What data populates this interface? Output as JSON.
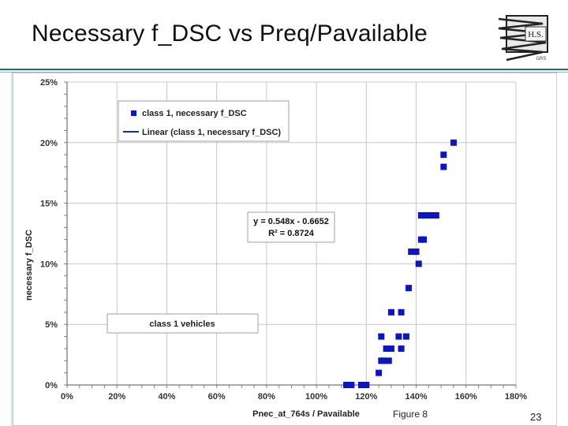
{
  "slide": {
    "title": "Necessary f_DSC vs Preq/Pavailable",
    "figure_caption": "Figure 8",
    "page_number": "23",
    "logo_text": "H.S.",
    "logo_small_text": "GRS"
  },
  "colors": {
    "accent_rule": "#0a7a68",
    "content_background": "#c6ede9",
    "marker": "#0a14c8",
    "trendline": "#1a2aa8"
  },
  "chart_data": {
    "type": "scatter",
    "xlabel": "Pnec_at_764s / Pavailable",
    "ylabel": "necessary f_DSC",
    "xlim": [
      0,
      180
    ],
    "ylim": [
      0,
      25
    ],
    "x_ticks": [
      "0%",
      "20%",
      "40%",
      "60%",
      "80%",
      "100%",
      "120%",
      "140%",
      "160%",
      "180%"
    ],
    "y_ticks": [
      "0%",
      "5%",
      "10%",
      "15%",
      "20%",
      "25%"
    ],
    "grid": true,
    "legend_position": "top-left",
    "legend": [
      "class 1, necessary f_DSC",
      "Linear (class 1, necessary f_DSC)"
    ],
    "series": [
      {
        "name": "class 1, necessary f_DSC",
        "points": [
          [
            112,
            0
          ],
          [
            114,
            0
          ],
          [
            118,
            0
          ],
          [
            120,
            0
          ],
          [
            125,
            1
          ],
          [
            126,
            2
          ],
          [
            126,
            4
          ],
          [
            127,
            2
          ],
          [
            128,
            3
          ],
          [
            129,
            2
          ],
          [
            130,
            6
          ],
          [
            130,
            3
          ],
          [
            133,
            4
          ],
          [
            134,
            3
          ],
          [
            134,
            6
          ],
          [
            136,
            4
          ],
          [
            137,
            8
          ],
          [
            138,
            11
          ],
          [
            140,
            11
          ],
          [
            141,
            10
          ],
          [
            142,
            12
          ],
          [
            142,
            14
          ],
          [
            143,
            12
          ],
          [
            144,
            14
          ],
          [
            146,
            14
          ],
          [
            148,
            14
          ],
          [
            151,
            19
          ],
          [
            151,
            18
          ],
          [
            155,
            20
          ]
        ]
      }
    ],
    "trendline": {
      "name": "Linear (class 1, necessary f_DSC)",
      "slope": 0.548,
      "intercept": -0.6652,
      "x_range": [
        121,
        156
      ]
    },
    "annotations": {
      "equation": "y = 0.548x - 0.6652",
      "r_squared": "R² = 0.8724",
      "group_label": "class 1 vehicles"
    }
  }
}
